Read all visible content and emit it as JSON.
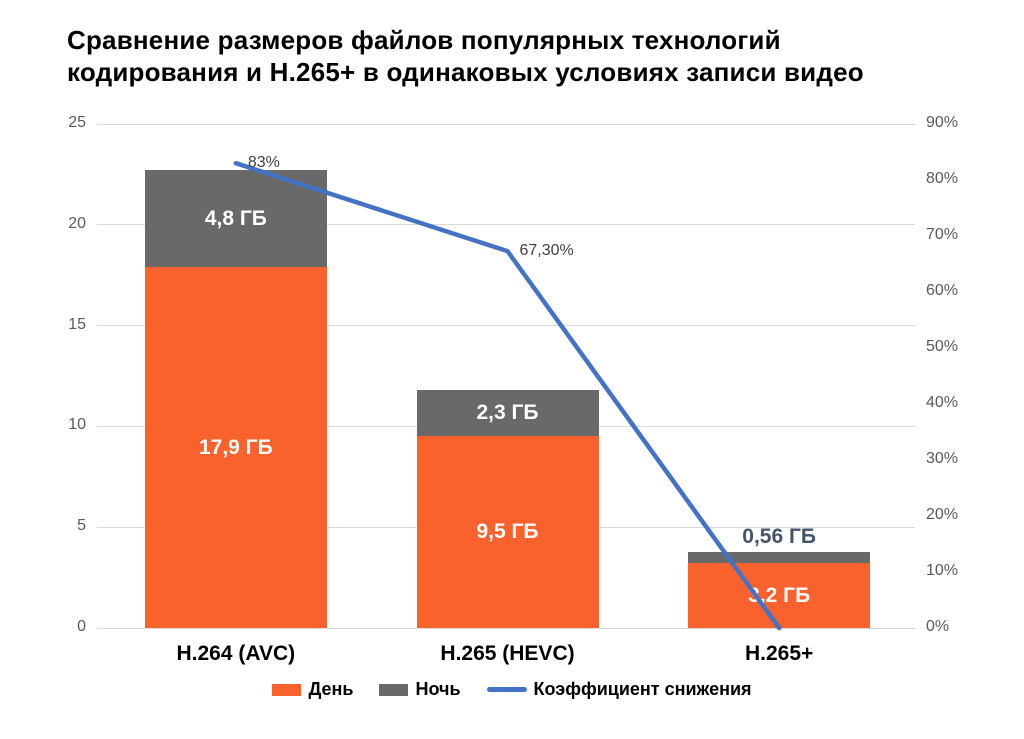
{
  "title_lines": [
    "Сравнение размеров файлов популярных технологий",
    "кодирования и H.265+ в одинаковых условиях записи видео"
  ],
  "chart_data": {
    "type": "combo",
    "title": "Сравнение размеров файлов популярных технологий кодирования и H.265+ в одинаковых условиях записи видео",
    "categories": [
      "H.264 (AVC)",
      "H.265 (HEVC)",
      "H.265+"
    ],
    "stacked": true,
    "bar_unit": "ГБ",
    "series": [
      {
        "name": "День",
        "kind": "bar",
        "color": "#F9622D",
        "values": [
          17.9,
          9.5,
          3.2
        ],
        "value_labels": [
          "17,9 ГБ",
          "9,5 ГБ",
          "3,2 ГБ"
        ]
      },
      {
        "name": "Ночь",
        "kind": "bar",
        "color": "#696969",
        "values": [
          4.8,
          2.3,
          0.56
        ],
        "value_labels": [
          "4,8 ГБ",
          "2,3 ГБ",
          "0,56 ГБ"
        ]
      },
      {
        "name": "Коэффициент снижения",
        "kind": "line",
        "color": "#4472C4",
        "values": [
          83,
          67.3,
          0
        ],
        "value_labels": [
          "83%",
          "67,30%",
          ""
        ]
      }
    ],
    "left_axis": {
      "min": 0,
      "max": 25,
      "ticks": [
        0,
        5,
        10,
        15,
        20,
        25
      ]
    },
    "right_axis": {
      "min": 0,
      "max": 90,
      "ticks": [
        0,
        10,
        20,
        30,
        40,
        50,
        60,
        70,
        80,
        90
      ],
      "suffix": "%"
    },
    "legend_position": "bottom",
    "grid": true,
    "style": {
      "background": "#FFFFFF",
      "gridline_color": "#D9D9D9",
      "axis_text_color": "#595959",
      "annotation_text_color": "#404040",
      "inside_bar_label_color": "#FFFFFF",
      "outside_bar_label_color": "#44546A"
    }
  }
}
